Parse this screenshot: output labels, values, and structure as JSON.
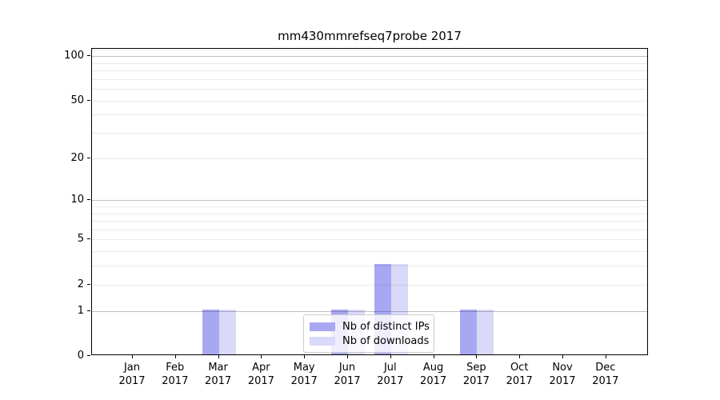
{
  "chart_data": {
    "type": "bar",
    "title": "mm430mmrefseq7probe 2017",
    "categories": [
      "Jan",
      "Feb",
      "Mar",
      "Apr",
      "May",
      "Jun",
      "Jul",
      "Aug",
      "Sep",
      "Oct",
      "Nov",
      "Dec"
    ],
    "x_tick_second_line": "2017",
    "series": [
      {
        "name": "Nb of distinct IPs",
        "color": "#a8a8f2",
        "values": [
          0,
          0,
          1,
          0,
          0,
          1,
          3,
          0,
          1,
          0,
          0,
          0
        ]
      },
      {
        "name": "Nb of downloads",
        "color": "#d9d9f9",
        "values": [
          0,
          0,
          1,
          0,
          0,
          1,
          3,
          0,
          1,
          0,
          0,
          0
        ]
      }
    ],
    "y_scale": "log1p",
    "ylim": [
      0,
      112
    ],
    "y_ticks": [
      0,
      1,
      2,
      5,
      10,
      20,
      50,
      100
    ],
    "y_major_gridlines": [
      1,
      10,
      100
    ],
    "y_minor_gridlines": [
      2,
      3,
      4,
      5,
      6,
      7,
      8,
      9,
      20,
      30,
      40,
      50,
      60,
      70,
      80,
      90,
      110
    ],
    "grid": true,
    "legend_position": "lower center",
    "xlabel": "",
    "ylabel": ""
  }
}
